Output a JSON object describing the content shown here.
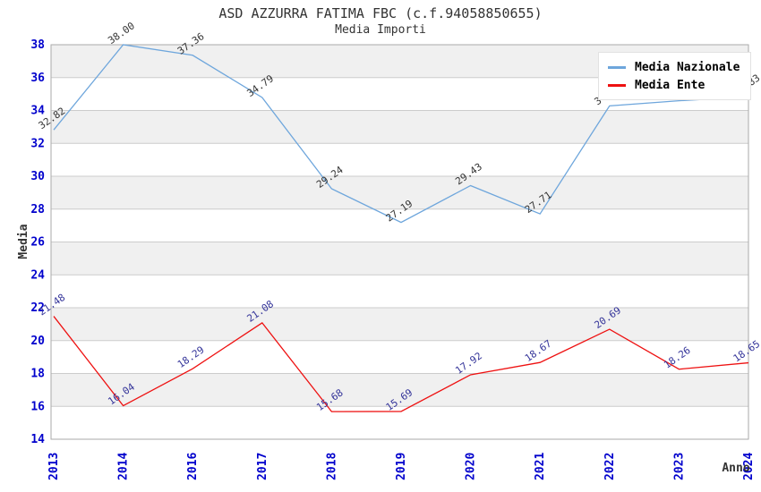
{
  "header": {
    "title": "ASD AZZURRA FATIMA FBC (c.f.94058850655)",
    "subtitle": "Media Importi"
  },
  "colors": {
    "axis_tick_text": "#0000cc",
    "band_fill": "#f0f0f0",
    "gridline": "#cccccc",
    "plot_border": "#aaaaaa",
    "nazionale_line": "#6ea6dc",
    "ente_line": "#ee1111",
    "nazionale_label_text": "#333333",
    "ente_label_text": "#333399",
    "axis_title_text": "#333333"
  },
  "chart_data": {
    "type": "line",
    "title": "ASD AZZURRA FATIMA FBC (c.f.94058850655)",
    "subtitle": "Media Importi",
    "xlabel": "Anno",
    "ylabel": "Media",
    "categories": [
      "2013",
      "2014",
      "2016",
      "2017",
      "2018",
      "2019",
      "2020",
      "2021",
      "2022",
      "2023",
      "2024"
    ],
    "ylim": [
      14,
      38
    ],
    "ytick_step": 2,
    "grid": "horizontal-bands-alternating",
    "legend_position": "top-right-inside",
    "series": [
      {
        "name": "Media Nazionale",
        "color": "#6ea6dc",
        "label_color": "#333333",
        "values": [
          32.82,
          38.0,
          37.36,
          34.79,
          29.24,
          27.19,
          29.43,
          27.71,
          34.28,
          34.59,
          34.83
        ],
        "note_occluded_labels": "2022 and 2023 labels hidden behind legend; values estimated from pixels"
      },
      {
        "name": "Media Ente",
        "color": "#ee1111",
        "label_color": "#333399",
        "values": [
          21.48,
          16.04,
          18.29,
          21.08,
          15.68,
          15.69,
          17.92,
          18.67,
          20.69,
          18.26,
          18.65
        ]
      }
    ]
  }
}
